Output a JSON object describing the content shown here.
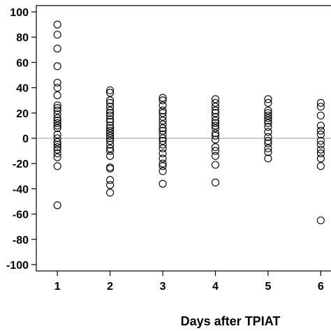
{
  "chart_data": {
    "type": "scatter",
    "title": "",
    "xlabel": "Days after TPIAT",
    "ylabel": "",
    "x_ticks": [
      "1",
      "2",
      "3",
      "4",
      "5",
      "6"
    ],
    "y_ticks": [
      "100",
      "80",
      "60",
      "40",
      "20",
      "0",
      "-20",
      "-40",
      "-60",
      "-80",
      "-100"
    ],
    "xlim": [
      0.6,
      6.3
    ],
    "ylim": [
      -105,
      105
    ],
    "reference_line": 0,
    "grid": false,
    "series": [
      {
        "values": [
          [
            1,
            90
          ],
          [
            1,
            82
          ],
          [
            1,
            71
          ],
          [
            1,
            57
          ],
          [
            1,
            44
          ],
          [
            1,
            40
          ],
          [
            1,
            34
          ],
          [
            1,
            26
          ],
          [
            1,
            24
          ],
          [
            1,
            22
          ],
          [
            1,
            19
          ],
          [
            1,
            16
          ],
          [
            1,
            14
          ],
          [
            1,
            12
          ],
          [
            1,
            10
          ],
          [
            1,
            8
          ],
          [
            1,
            3
          ],
          [
            1,
            0
          ],
          [
            1,
            -3
          ],
          [
            1,
            -5
          ],
          [
            1,
            -7
          ],
          [
            1,
            -9
          ],
          [
            1,
            -12
          ],
          [
            1,
            -15
          ],
          [
            1,
            -22
          ],
          [
            1,
            -53
          ],
          [
            2,
            38
          ],
          [
            2,
            36
          ],
          [
            2,
            30
          ],
          [
            2,
            28
          ],
          [
            2,
            25
          ],
          [
            2,
            22
          ],
          [
            2,
            20
          ],
          [
            2,
            18
          ],
          [
            2,
            15
          ],
          [
            2,
            13
          ],
          [
            2,
            10
          ],
          [
            2,
            8
          ],
          [
            2,
            6
          ],
          [
            2,
            4
          ],
          [
            2,
            2
          ],
          [
            2,
            0
          ],
          [
            2,
            -2
          ],
          [
            2,
            -5
          ],
          [
            2,
            -8
          ],
          [
            2,
            -10
          ],
          [
            2,
            -14
          ],
          [
            2,
            -23
          ],
          [
            2,
            -24
          ],
          [
            2,
            -33
          ],
          [
            2,
            -37
          ],
          [
            2,
            -43
          ],
          [
            3,
            32
          ],
          [
            3,
            30
          ],
          [
            3,
            26
          ],
          [
            3,
            22
          ],
          [
            3,
            20
          ],
          [
            3,
            17
          ],
          [
            3,
            14
          ],
          [
            3,
            11
          ],
          [
            3,
            8
          ],
          [
            3,
            6
          ],
          [
            3,
            3
          ],
          [
            3,
            0
          ],
          [
            3,
            -2
          ],
          [
            3,
            -5
          ],
          [
            3,
            -8
          ],
          [
            3,
            -12
          ],
          [
            3,
            -16
          ],
          [
            3,
            -20
          ],
          [
            3,
            -22
          ],
          [
            3,
            -26
          ],
          [
            3,
            -36
          ],
          [
            4,
            31
          ],
          [
            4,
            28
          ],
          [
            4,
            25
          ],
          [
            4,
            22
          ],
          [
            4,
            20
          ],
          [
            4,
            17
          ],
          [
            4,
            14
          ],
          [
            4,
            12
          ],
          [
            4,
            10
          ],
          [
            4,
            8
          ],
          [
            4,
            4
          ],
          [
            4,
            2
          ],
          [
            4,
            -1
          ],
          [
            4,
            -7
          ],
          [
            4,
            -10
          ],
          [
            4,
            -14
          ],
          [
            4,
            -21
          ],
          [
            4,
            -35
          ],
          [
            5,
            31
          ],
          [
            5,
            28
          ],
          [
            5,
            22
          ],
          [
            5,
            20
          ],
          [
            5,
            18
          ],
          [
            5,
            16
          ],
          [
            5,
            14
          ],
          [
            5,
            12
          ],
          [
            5,
            9
          ],
          [
            5,
            5
          ],
          [
            5,
            1
          ],
          [
            5,
            -2
          ],
          [
            5,
            -4
          ],
          [
            5,
            -8
          ],
          [
            5,
            -11
          ],
          [
            5,
            -16
          ],
          [
            6,
            28
          ],
          [
            6,
            25
          ],
          [
            6,
            18
          ],
          [
            6,
            10
          ],
          [
            6,
            6
          ],
          [
            6,
            3
          ],
          [
            6,
            -2
          ],
          [
            6,
            -5
          ],
          [
            6,
            -9
          ],
          [
            6,
            -12
          ],
          [
            6,
            -16
          ],
          [
            6,
            -22
          ],
          [
            6,
            -65
          ]
        ]
      }
    ]
  }
}
